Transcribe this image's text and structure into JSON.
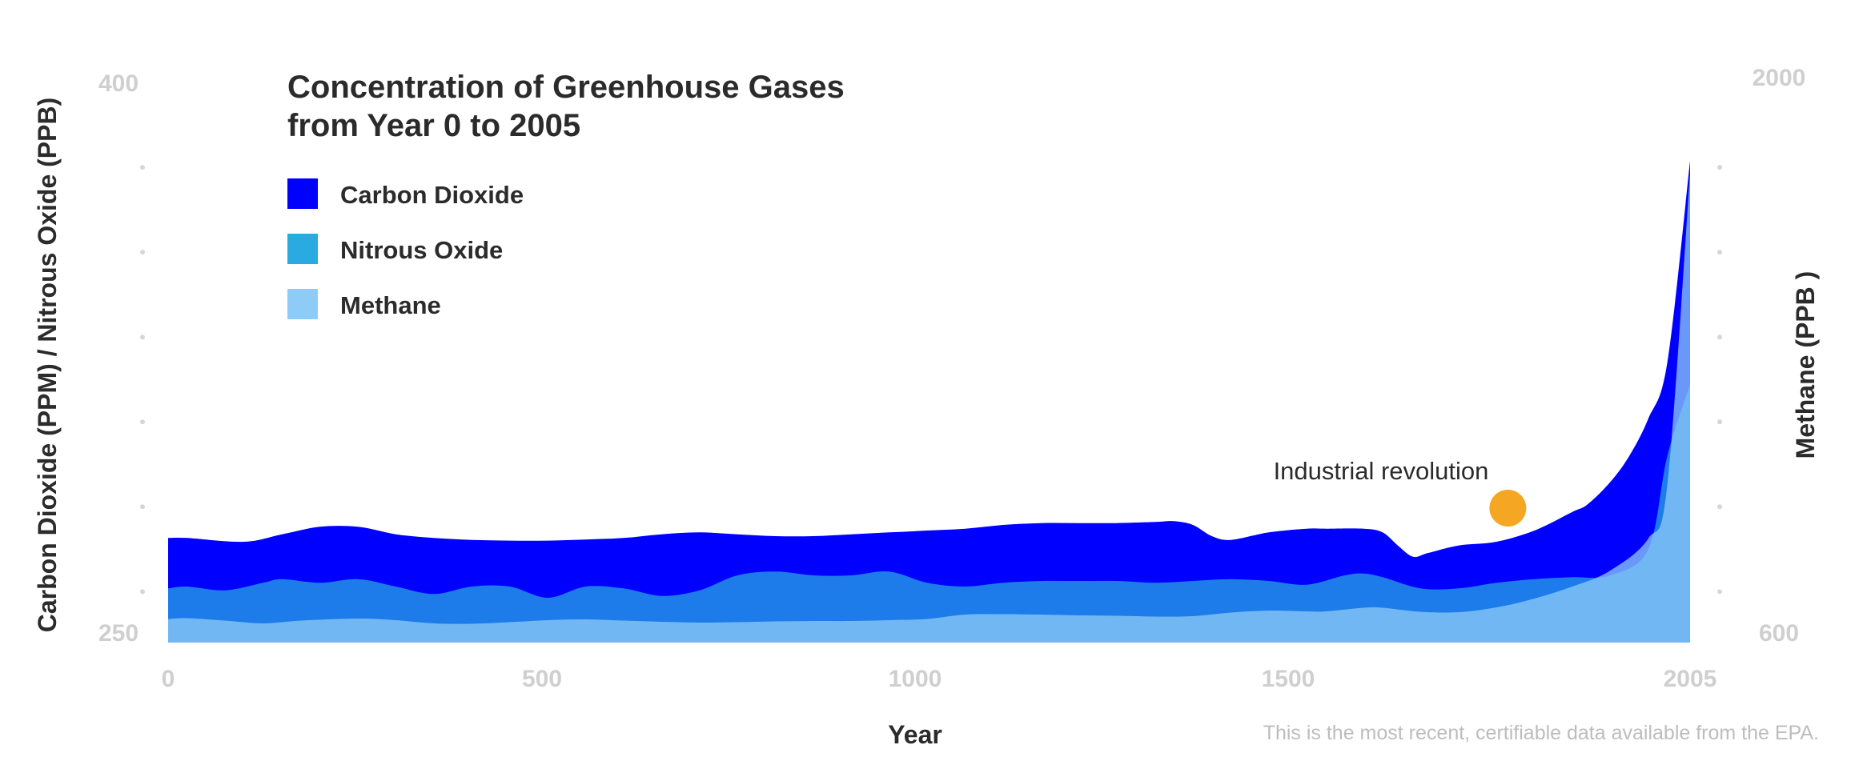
{
  "chart_data": {
    "type": "area",
    "title_lines": [
      "Concentration of Greenhouse Gases",
      "from Year 0 to 2005"
    ],
    "xlabel": "Year",
    "ylabel_left": "Carbon Dioxide (PPM) / Nitrous Oxide (PPB)",
    "ylabel_right": "Methane (PPB )",
    "footnote": "This is the most recent, certifiable data available from the EPA.",
    "xlim": [
      0,
      2005
    ],
    "x_ticks": [
      "0",
      "500",
      "1000",
      "1500",
      "2005"
    ],
    "ylim_left": [
      250,
      400
    ],
    "ylim_right": [
      600,
      2000
    ],
    "y_left_tick_labels": [
      "400",
      "250"
    ],
    "y_right_tick_labels": [
      "2000",
      "600"
    ],
    "legend_position": "top-left",
    "series": [
      {
        "name": "Carbon Dioxide",
        "color": "#0000ff",
        "axis": "left",
        "x": [
          0,
          25,
          100,
          150,
          200,
          250,
          300,
          350,
          400,
          450,
          500,
          550,
          600,
          650,
          700,
          750,
          800,
          850,
          900,
          950,
          1000,
          1050,
          1100,
          1150,
          1200,
          1250,
          1300,
          1325,
          1350,
          1375,
          1400,
          1450,
          1500,
          1525,
          1575,
          1600,
          1620,
          1640,
          1660,
          1700,
          1750,
          1800,
          1850,
          1870,
          1900,
          1925,
          1950,
          1975,
          2005
        ],
        "y": [
          278,
          278,
          277,
          279,
          281,
          281,
          279,
          278,
          277.5,
          277.3,
          277.3,
          277.6,
          278,
          279,
          279.5,
          279,
          278.5,
          278.5,
          279,
          279.5,
          280,
          280.5,
          281.5,
          282,
          282,
          282,
          282.3,
          282.5,
          281.5,
          278.5,
          277.5,
          279.5,
          280.5,
          280.5,
          280.5,
          279.5,
          276,
          273,
          274,
          276,
          277,
          280,
          285,
          287,
          293,
          300,
          310,
          325,
          379
        ]
      },
      {
        "name": "Nitrous Oxide",
        "color": "#29abe2",
        "axis": "left",
        "x": [
          0,
          25,
          75,
          125,
          150,
          200,
          250,
          300,
          350,
          400,
          450,
          500,
          550,
          600,
          650,
          700,
          750,
          800,
          850,
          900,
          950,
          1000,
          1050,
          1100,
          1150,
          1200,
          1250,
          1300,
          1350,
          1400,
          1450,
          1500,
          1550,
          1575,
          1600,
          1650,
          1700,
          1750,
          1800,
          1850,
          1900,
          1950,
          1975,
          2005
        ],
        "y": [
          264.5,
          265,
          264,
          266,
          267,
          266,
          267,
          265,
          263,
          265,
          265,
          262,
          265,
          264.5,
          262.5,
          264,
          268,
          269,
          268,
          268,
          269,
          266,
          265,
          266,
          266.5,
          266.5,
          266.5,
          266,
          266.5,
          267,
          266.5,
          265.5,
          268,
          268.5,
          267.5,
          264.5,
          264.5,
          266,
          267,
          267.5,
          268,
          275,
          300,
          319
        ]
      },
      {
        "name": "Methane",
        "color": "#8ecbf7",
        "axis": "right",
        "x": [
          0,
          25,
          75,
          125,
          175,
          250,
          300,
          350,
          400,
          450,
          500,
          550,
          600,
          650,
          700,
          750,
          800,
          850,
          900,
          950,
          1000,
          1050,
          1100,
          1150,
          1200,
          1250,
          1300,
          1350,
          1400,
          1450,
          1500,
          1525,
          1575,
          1600,
          1650,
          1700,
          1750,
          1800,
          1850,
          1900,
          1950,
          1975,
          2005
        ],
        "y": [
          659,
          661,
          655,
          648,
          655,
          660,
          656,
          648,
          647,
          651,
          656,
          658,
          655,
          652,
          650,
          651,
          653,
          654,
          654,
          656,
          659,
          670,
          671,
          670,
          668,
          667,
          665,
          666,
          675,
          680,
          678,
          678,
          687,
          687,
          677,
          676,
          688,
          710,
          740,
          780,
          860,
          995,
          1774
        ]
      }
    ],
    "annotations": [
      {
        "label": "Industrial revolution",
        "x": 1765,
        "y_left": 286,
        "color": "#f5a623"
      }
    ]
  }
}
